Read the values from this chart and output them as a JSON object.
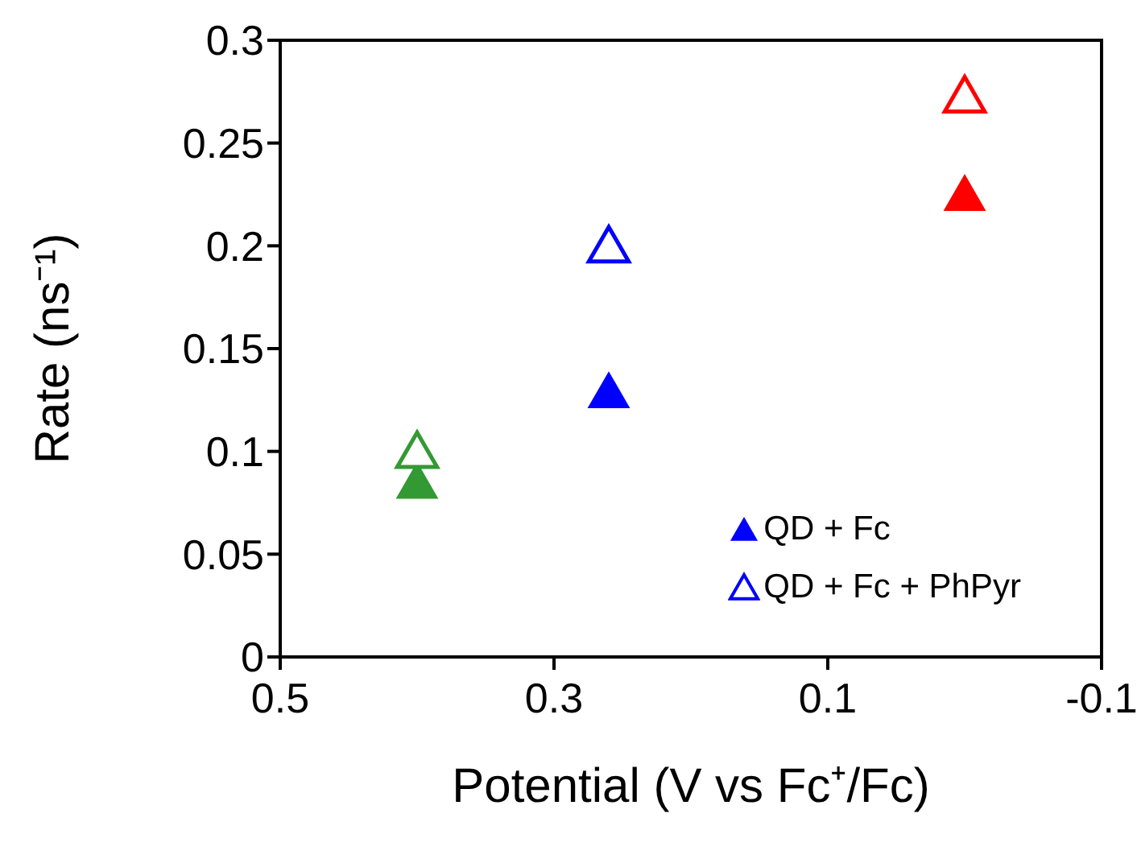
{
  "chart_data": {
    "type": "scatter",
    "xlabel": "Potential (V vs Fc⁺/Fc)",
    "ylabel": "Rate (ns⁻¹)",
    "x": [
      0.4,
      0.26,
      0.0
    ],
    "series": [
      {
        "name": "QD + Fc",
        "color": "#0000ff",
        "colors": [
          "#339933",
          "#0000ff",
          "#ff0000"
        ],
        "values": [
          0.084,
          0.128,
          0.224
        ]
      },
      {
        "name": "QD + Fc + PhPyr",
        "color": "#0000ff",
        "colors": [
          "#339933",
          "#0000ff",
          "#ff0000"
        ],
        "values": [
          0.099,
          0.199,
          0.272
        ]
      }
    ],
    "xlim": [
      0.5,
      -0.1
    ],
    "xticks": [
      0.5,
      0.3,
      0.1,
      -0.1
    ],
    "ylim": [
      0,
      0.3
    ],
    "yticks": [
      0,
      0.05,
      0.1,
      0.15,
      0.2,
      0.25,
      0.3
    ],
    "grid": false,
    "legend": "bottom right",
    "marker": "triangle"
  }
}
